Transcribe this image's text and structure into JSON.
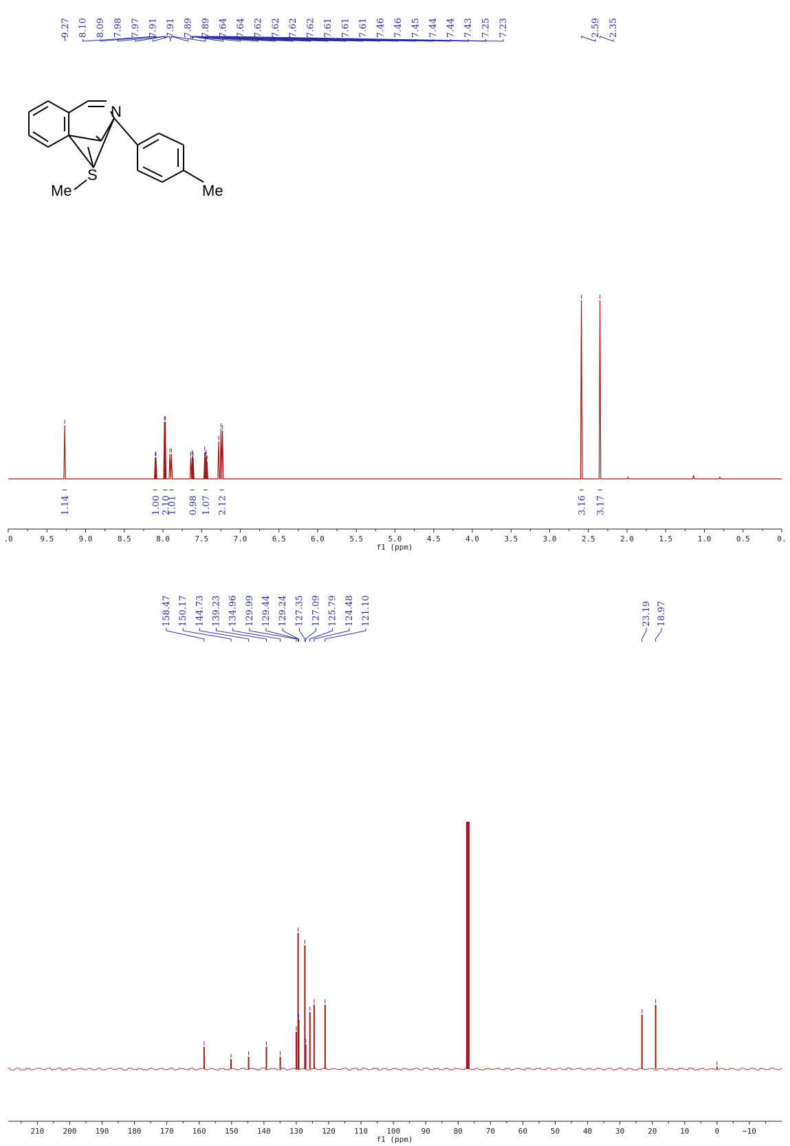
{
  "molecule": {
    "atoms": {
      "n": "N",
      "s": "S",
      "me1": "Me",
      "me2": "Me"
    }
  },
  "colors": {
    "spectrum": "#a01818",
    "label": "#2b2f9a",
    "integral": "#2e8b2e",
    "axis": "#222222"
  },
  "chart_data": [
    {
      "type": "line",
      "nucleus": "1H",
      "xlabel": "f1 (ppm)",
      "xlim": [
        10.0,
        0.0
      ],
      "xticks": [
        {
          "v": 10.0,
          "t": ".0"
        },
        {
          "v": 9.5,
          "t": "9.5"
        },
        {
          "v": 9.0,
          "t": "9.0"
        },
        {
          "v": 8.5,
          "t": "8.5"
        },
        {
          "v": 8.0,
          "t": "8.0"
        },
        {
          "v": 7.5,
          "t": "7.5"
        },
        {
          "v": 7.0,
          "t": "7.0"
        },
        {
          "v": 6.5,
          "t": "6.5"
        },
        {
          "v": 6.0,
          "t": "6.0"
        },
        {
          "v": 5.5,
          "t": "5.5"
        },
        {
          "v": 5.0,
          "t": "5.0"
        },
        {
          "v": 4.5,
          "t": "4.5"
        },
        {
          "v": 4.0,
          "t": "4.0"
        },
        {
          "v": 3.5,
          "t": "3.5"
        },
        {
          "v": 3.0,
          "t": "3.0"
        },
        {
          "v": 2.5,
          "t": "2.5"
        },
        {
          "v": 2.0,
          "t": "2.0"
        },
        {
          "v": 1.5,
          "t": "1.5"
        },
        {
          "v": 1.0,
          "t": "1.0"
        },
        {
          "v": 0.5,
          "t": "0.5"
        },
        {
          "v": 0.0,
          "t": "0."
        }
      ],
      "peak_labels": [
        "9.27",
        "8.10",
        "8.09",
        "7.98",
        "7.97",
        "7.91",
        "7.91",
        "7.89",
        "7.89",
        "7.64",
        "7.64",
        "7.62",
        "7.62",
        "7.62",
        "7.62",
        "7.61",
        "7.61",
        "7.61",
        "7.46",
        "7.46",
        "7.45",
        "7.44",
        "7.44",
        "7.43",
        "7.25",
        "7.23",
        "2.59",
        "2.35"
      ],
      "peaks": [
        {
          "x": 9.27,
          "y": 0.3
        },
        {
          "x": 8.1,
          "y": 0.12
        },
        {
          "x": 8.09,
          "y": 0.12
        },
        {
          "x": 7.98,
          "y": 0.32
        },
        {
          "x": 7.97,
          "y": 0.32
        },
        {
          "x": 7.91,
          "y": 0.14
        },
        {
          "x": 7.89,
          "y": 0.14
        },
        {
          "x": 7.64,
          "y": 0.12
        },
        {
          "x": 7.62,
          "y": 0.13
        },
        {
          "x": 7.61,
          "y": 0.12
        },
        {
          "x": 7.46,
          "y": 0.15
        },
        {
          "x": 7.45,
          "y": 0.12
        },
        {
          "x": 7.44,
          "y": 0.13
        },
        {
          "x": 7.43,
          "y": 0.1
        },
        {
          "x": 7.28,
          "y": 0.21
        },
        {
          "x": 7.25,
          "y": 0.28
        },
        {
          "x": 7.23,
          "y": 0.27
        },
        {
          "x": 2.59,
          "y": 1.0
        },
        {
          "x": 2.35,
          "y": 1.0
        },
        {
          "x": 1.99,
          "y": 0.01
        },
        {
          "x": 1.14,
          "y": 0.02
        },
        {
          "x": 0.8,
          "y": 0.01
        }
      ],
      "integrals": [
        {
          "x": 9.27,
          "label": "1.14"
        },
        {
          "x": 8.1,
          "label": "1.00"
        },
        {
          "x": 7.97,
          "label": "2.10"
        },
        {
          "x": 7.89,
          "label": "1.01"
        },
        {
          "x": 7.62,
          "label": "0.98"
        },
        {
          "x": 7.45,
          "label": "1.07"
        },
        {
          "x": 7.24,
          "label": "2.12"
        },
        {
          "x": 2.59,
          "label": "3.16"
        },
        {
          "x": 2.35,
          "label": "3.17"
        }
      ]
    },
    {
      "type": "line",
      "nucleus": "13C",
      "xlabel": "f1 (ppm)",
      "xlim": [
        219.0,
        -20.0
      ],
      "xticks": [
        210,
        200,
        190,
        180,
        170,
        160,
        150,
        140,
        130,
        120,
        110,
        100,
        90,
        80,
        70,
        60,
        50,
        40,
        30,
        20,
        10,
        0,
        -10
      ],
      "xtick_labels": [
        "210",
        "200",
        "190",
        "180",
        "170",
        "160",
        "150",
        "140",
        "130",
        "120",
        "110",
        "100",
        "90",
        "80",
        "70",
        "60",
        "50",
        "40",
        "30",
        "20",
        "10",
        "0",
        "−10"
      ],
      "peak_labels": [
        "158.47",
        "150.17",
        "144.73",
        "139.23",
        "134.96",
        "129.99",
        "129.44",
        "129.24",
        "127.35",
        "127.09",
        "125.79",
        "124.48",
        "121.10",
        "23.19",
        "18.97"
      ],
      "peaks": [
        {
          "x": 158.47,
          "y": 0.09
        },
        {
          "x": 150.17,
          "y": 0.04
        },
        {
          "x": 144.73,
          "y": 0.05
        },
        {
          "x": 139.23,
          "y": 0.09
        },
        {
          "x": 134.96,
          "y": 0.05
        },
        {
          "x": 129.99,
          "y": 0.15
        },
        {
          "x": 129.44,
          "y": 0.55
        },
        {
          "x": 129.24,
          "y": 0.2
        },
        {
          "x": 127.35,
          "y": 0.5
        },
        {
          "x": 127.09,
          "y": 0.1
        },
        {
          "x": 125.79,
          "y": 0.23
        },
        {
          "x": 124.48,
          "y": 0.26
        },
        {
          "x": 121.1,
          "y": 0.26
        },
        {
          "x": 77.32,
          "y": 1.0
        },
        {
          "x": 77.0,
          "y": 1.0
        },
        {
          "x": 76.68,
          "y": 1.0
        },
        {
          "x": 23.19,
          "y": 0.22
        },
        {
          "x": 18.97,
          "y": 0.26
        },
        {
          "x": 0.0,
          "y": 0.01
        }
      ]
    }
  ]
}
